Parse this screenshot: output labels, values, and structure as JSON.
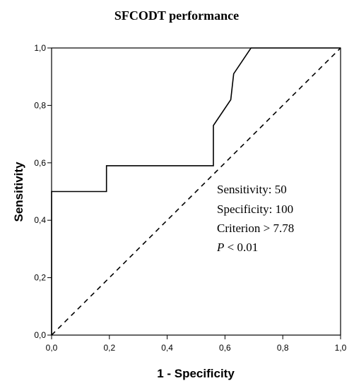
{
  "chart_data": {
    "type": "line",
    "title": "SFCODT performance",
    "xlabel": "1 - Specificity",
    "ylabel": "Sensitivity",
    "xlim": [
      0,
      1
    ],
    "ylim": [
      0,
      1
    ],
    "x_ticks": [
      "0,0",
      "0,2",
      "0,4",
      "0,6",
      "0,8",
      "1,0"
    ],
    "y_ticks": [
      "0,0",
      "0,2",
      "0,4",
      "0,6",
      "0,8",
      "1,0"
    ],
    "grid": false,
    "series": [
      {
        "style": "solid",
        "color": "#000000",
        "points": [
          [
            0,
            0
          ],
          [
            0,
            0.5
          ],
          [
            0.19,
            0.5
          ],
          [
            0.19,
            0.59
          ],
          [
            0.56,
            0.59
          ],
          [
            0.56,
            0.73
          ],
          [
            0.62,
            0.82
          ],
          [
            0.63,
            0.91
          ],
          [
            0.69,
            1.0
          ],
          [
            1.0,
            1.0
          ]
        ]
      },
      {
        "style": "dashed",
        "color": "#000000",
        "points": [
          [
            0,
            0
          ],
          [
            1,
            1
          ]
        ]
      }
    ],
    "annotations": {
      "sensitivity": "Sensitivity: 50",
      "specificity": "Specificity: 100",
      "criterion": "Criterion > 7.78",
      "p_symbol": "P",
      "p_rest": " < 0.01"
    }
  }
}
